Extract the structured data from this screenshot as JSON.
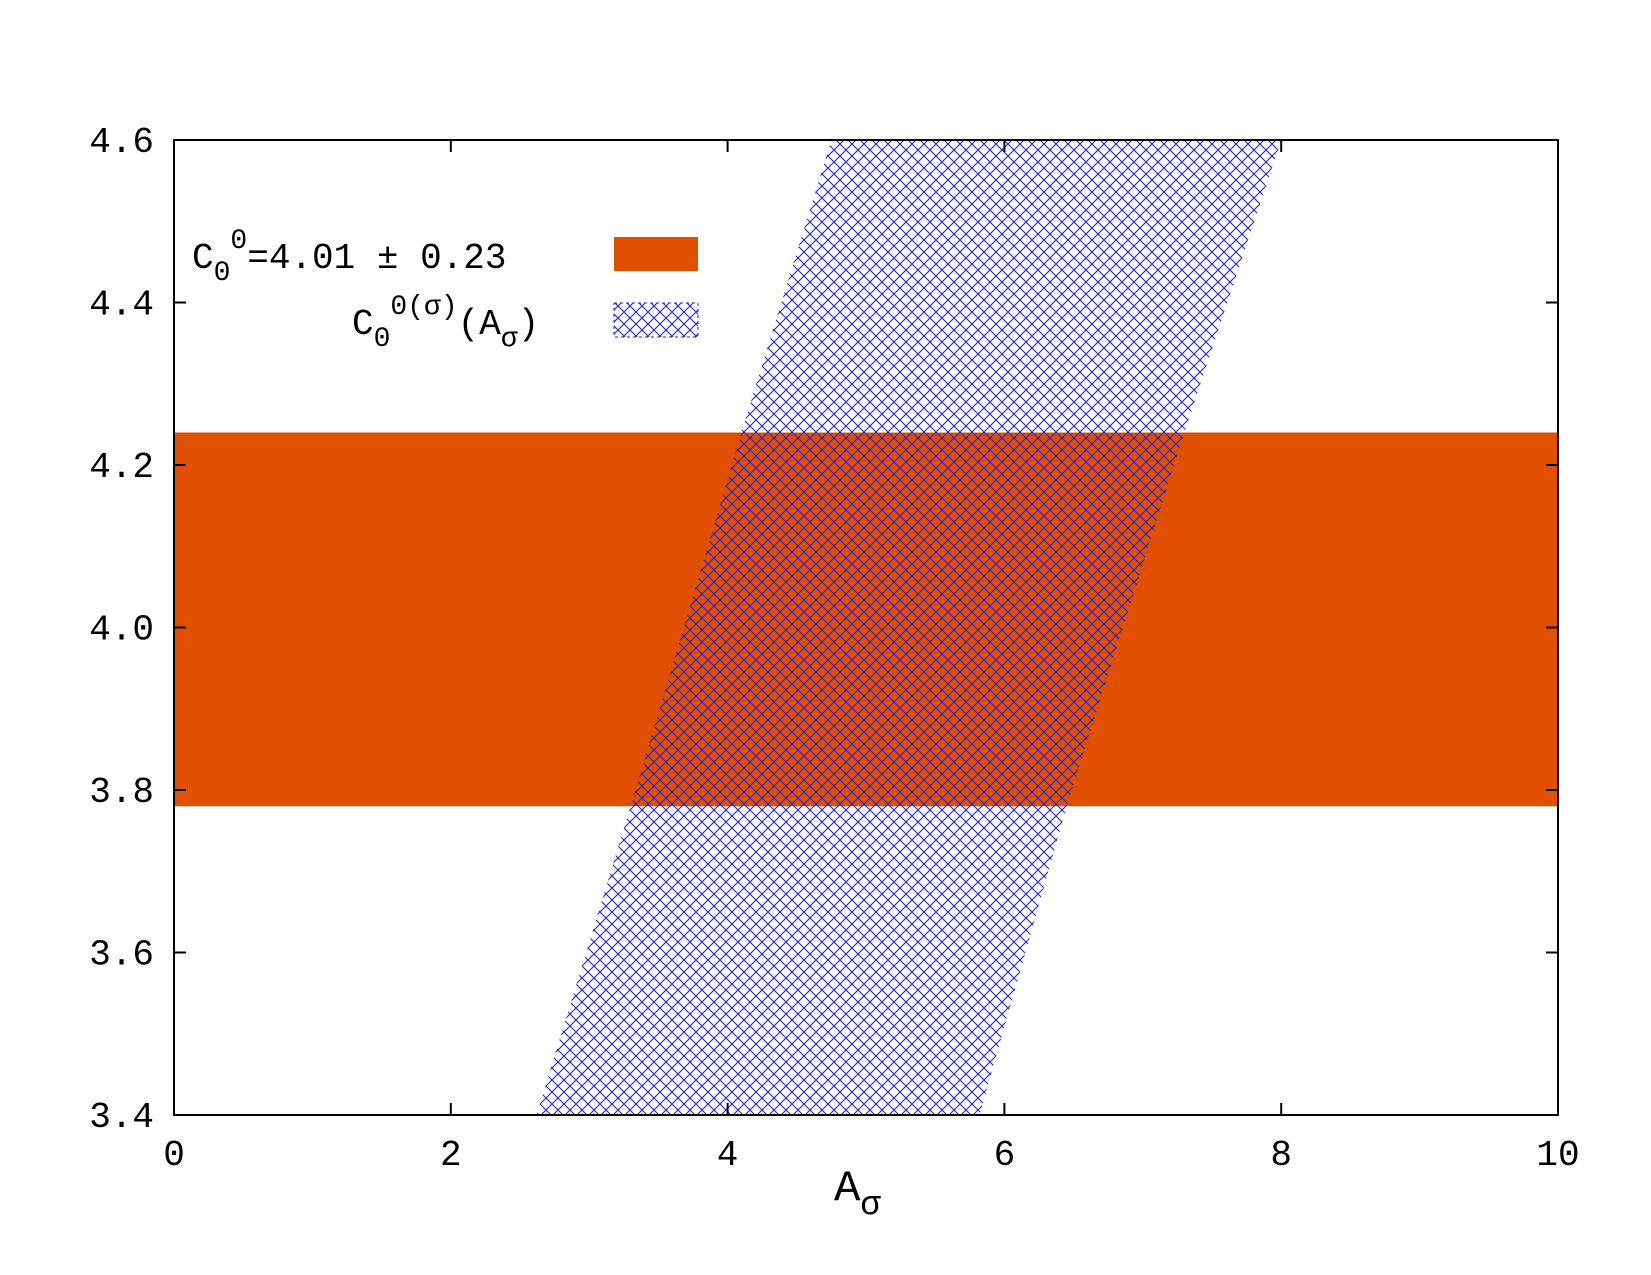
{
  "chart_data": {
    "type": "area",
    "title": "",
    "xlabel": "A",
    "xlabel_sub": "σ",
    "ylabel": "",
    "xlim": [
      0,
      10
    ],
    "ylim": [
      3.4,
      4.6
    ],
    "xticks": [
      0,
      2,
      4,
      6,
      8,
      10
    ],
    "yticks": [
      3.4,
      3.6,
      3.8,
      4.0,
      4.2,
      4.4,
      4.6
    ],
    "xtick_labels": [
      "0",
      "2",
      "4",
      "6",
      "8",
      "10"
    ],
    "ytick_labels": [
      "3.4",
      "3.6",
      "3.8",
      "4.0",
      "4.2",
      "4.4",
      "4.6"
    ],
    "grid": false,
    "legend_position": "top-left",
    "series": [
      {
        "name": "C0^0=4.01 ± 0.23",
        "kind": "horizontal-band",
        "ymin": 3.78,
        "ymax": 4.24,
        "color": "#e05000",
        "fill": "solid"
      },
      {
        "name": "C0^0(σ)(Aσ)",
        "kind": "slanted-band",
        "left_edge": [
          [
            2.62,
            3.4
          ],
          [
            3.3,
            3.78
          ],
          [
            4.1,
            4.24
          ],
          [
            4.75,
            4.6
          ]
        ],
        "right_edge": [
          [
            5.82,
            3.4
          ],
          [
            6.45,
            3.78
          ],
          [
            7.3,
            4.24
          ],
          [
            8.0,
            4.6
          ]
        ],
        "color": "#2222cc",
        "fill": "crosshatch"
      }
    ],
    "legend": [
      {
        "text": "C",
        "sub": "0",
        "sup": "0",
        "tail": "=4.01 ± 0.23"
      },
      {
        "text": "C",
        "sub": "0",
        "sup": "0(σ)",
        "tail": "(A",
        "tail_sub": "σ",
        "tail_end": ")"
      }
    ]
  }
}
